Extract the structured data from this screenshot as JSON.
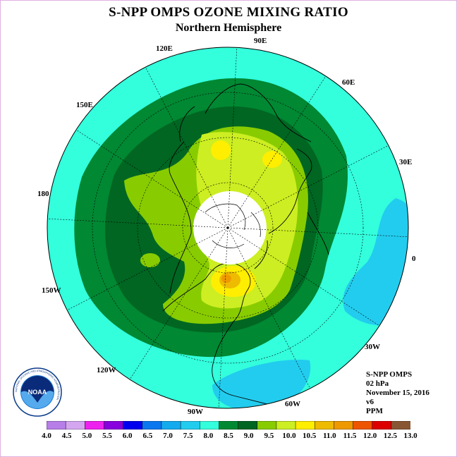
{
  "title": "S-NPP OMPS OZONE MIXING RATIO",
  "subtitle": "Northern Hemisphere",
  "longitude_labels": [
    "90E",
    "60E",
    "30E",
    "0",
    "30W",
    "60W",
    "90W",
    "120W",
    "150W",
    "180",
    "150E",
    "120E"
  ],
  "info": {
    "instrument": "S-NPP OMPS",
    "level": "02 hPa",
    "date": "November 15, 2016",
    "version": "v6",
    "units": "PPM"
  },
  "logo": {
    "text": "NOAA",
    "ring_text": "NATIONAL OCEANIC AND ATMOSPHERIC ADMINISTRATION"
  },
  "colorbar": {
    "levels": [
      "4.0",
      "4.5",
      "5.0",
      "5.5",
      "6.0",
      "6.5",
      "7.0",
      "7.5",
      "8.0",
      "8.5",
      "9.0",
      "9.5",
      "10.0",
      "10.5",
      "11.0",
      "11.5",
      "12.0",
      "12.5",
      "13.0"
    ],
    "colors": [
      "#b77ee8",
      "#d4a6f0",
      "#ee22ee",
      "#8800dd",
      "#0000ee",
      "#0a77ee",
      "#14aaee",
      "#22ccee",
      "#33ffdd",
      "#008833",
      "#006622",
      "#88cc00",
      "#ccee22",
      "#ffee00",
      "#eebb00",
      "#ee9900",
      "#ee5500",
      "#dd0000",
      "#885533"
    ]
  },
  "map_colors": {
    "c8": "#33ffdd",
    "c7": "#22ccee",
    "c85": "#008833",
    "c9": "#006622",
    "c95": "#88cc00",
    "c10": "#ccee22",
    "c105": "#ffee00",
    "c11": "#eebb00",
    "c115": "#ee9900"
  }
}
